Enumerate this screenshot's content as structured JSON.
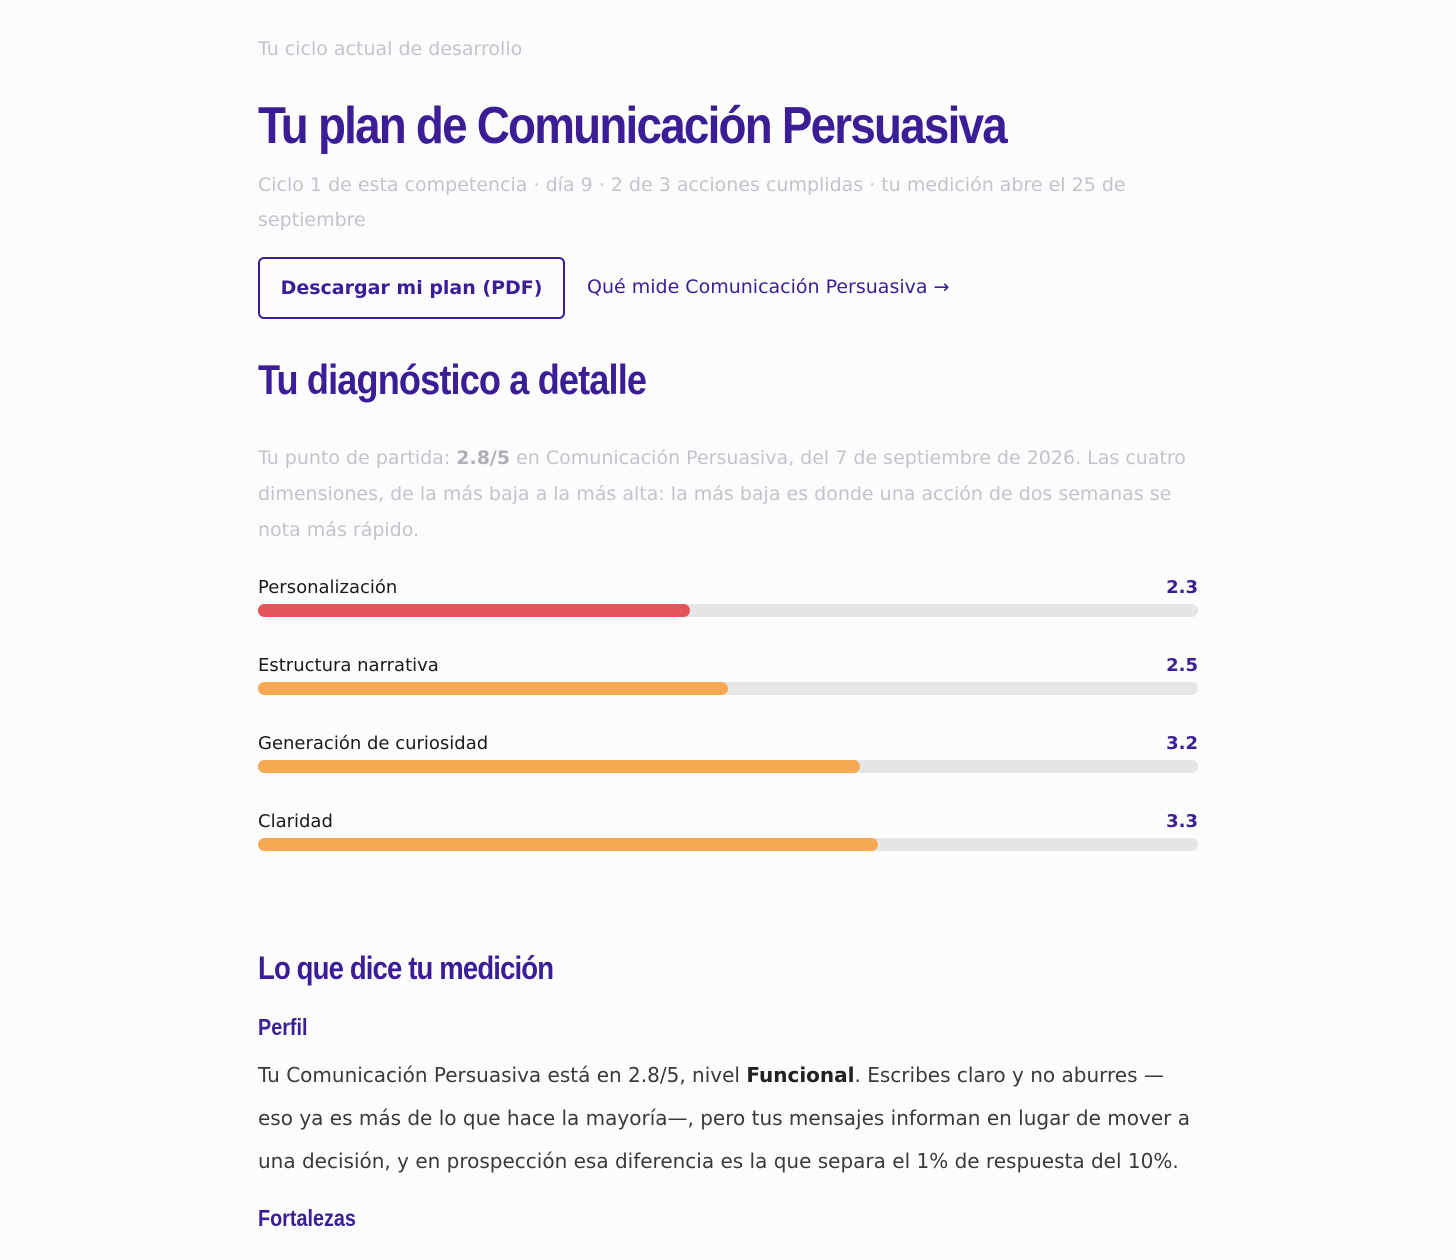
{
  "header": {
    "eyebrow": "Tu ciclo actual de desarrollo",
    "title": "Tu plan de Comunicación Persuasiva",
    "meta": "Ciclo 1 de esta competencia · día 9 · 2 de 3 acciones cumplidas · tu medición abre el 25 de septiembre",
    "button": "Descargar mi plan (PDF)",
    "link": "Qué mide Comunicación Persuasiva →"
  },
  "diagnostic": {
    "title": "Tu diagnóstico a detalle",
    "intro": {
      "before": "Tu punto de partida: ",
      "bold": "2.8/5",
      "after": " en Comunicación Persuasiva, del 7 de septiembre de 2026. Las cuatro dimensiones, de la más baja a la más alta: la más baja es donde una acción de dos semanas se nota más rápido."
    },
    "xlim": [
      0,
      5
    ],
    "dimensions": [
      {
        "name": "Personalización",
        "value": 2.3,
        "color": "#e5545a"
      },
      {
        "name": "Estructura narrativa",
        "value": 2.5,
        "color": "#f7a852"
      },
      {
        "name": "Generación de curiosidad",
        "value": 3.2,
        "color": "#f7a852"
      },
      {
        "name": "Claridad",
        "value": 3.3,
        "color": "#f7a852"
      }
    ]
  },
  "measurement": {
    "title": "Lo que dice tu medición",
    "profile": {
      "heading": "Perfil",
      "before": "Tu Comunicación Persuasiva está en 2.8/5, nivel ",
      "bold": "Funcional",
      "after": ". Escribes claro y no aburres —eso ya es más de lo que hace la mayoría—, pero tus mensajes informan en lugar de mover a una decisión, y en prospección esa diferencia es la que separa el 1% de respuesta del 10%."
    },
    "strengths": {
      "heading": "Fortalezas"
    }
  }
}
